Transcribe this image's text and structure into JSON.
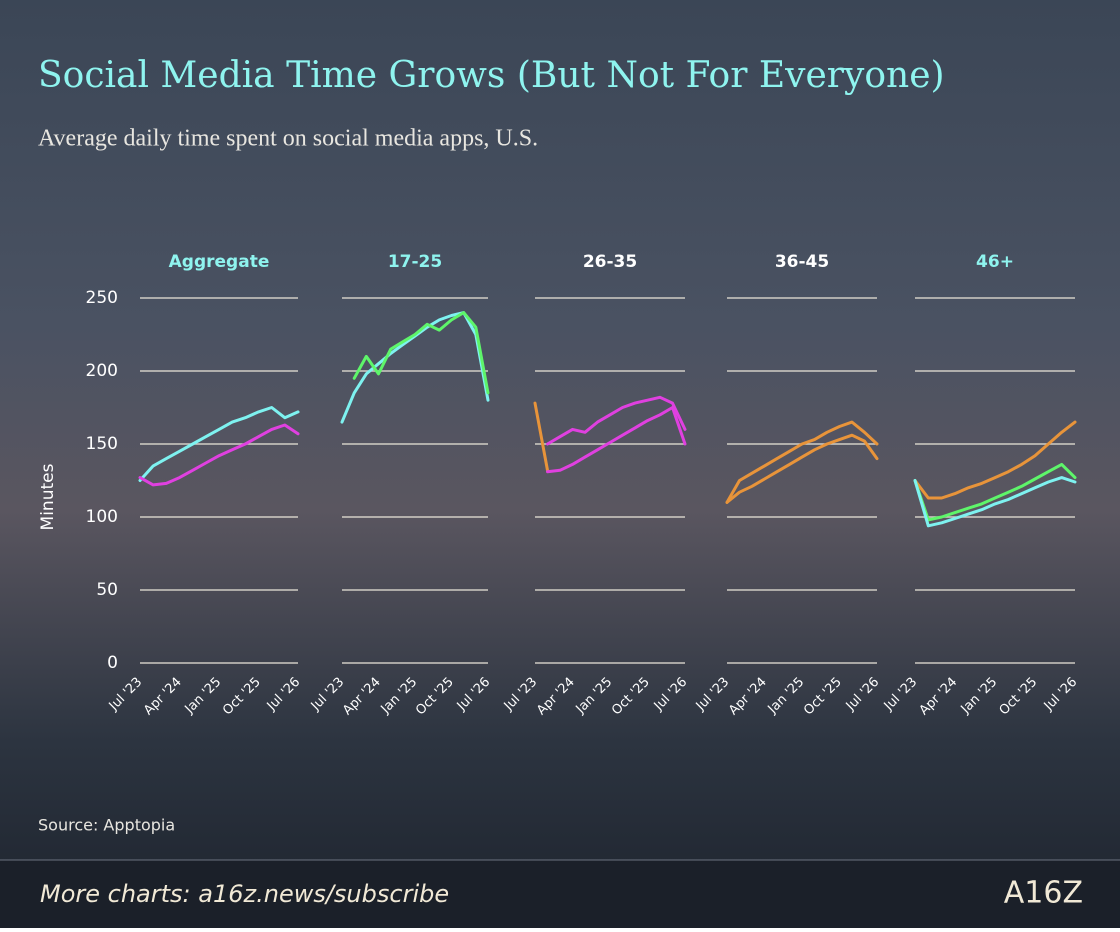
{
  "title": "Social Media Time Grows (But Not For Everyone)",
  "subtitle": "Average daily time spent on social media apps, U.S.",
  "source": "Source: Apptopia",
  "footer": "More charts: a16z.news/subscribe",
  "logo": "A16Z",
  "chart_data": [
    {
      "type": "line",
      "title": "Aggregate",
      "title_color": "#8ff4ef",
      "ylabel": "Minutes",
      "categories": [
        "Jul '23",
        null,
        null,
        "Apr '24",
        null,
        null,
        "Jan '25",
        null,
        null,
        "Oct '25",
        null,
        null,
        "Jul '26"
      ],
      "ylim": [
        0,
        250
      ],
      "yticks": [
        0,
        50,
        100,
        150,
        200,
        250
      ],
      "grid": true,
      "series": [
        {
          "color": "#7ef2f0",
          "values": [
            125,
            135,
            140,
            145,
            150,
            155,
            160,
            165,
            168,
            172,
            175,
            168,
            172
          ]
        },
        {
          "color": "#e040e0",
          "values": [
            127,
            122,
            123,
            127,
            132,
            137,
            142,
            146,
            150,
            155,
            160,
            163,
            157
          ]
        }
      ]
    },
    {
      "type": "line",
      "title": "17-25",
      "title_color": "#8ff4ef",
      "categories": [
        "Jul '23",
        null,
        null,
        "Apr '24",
        null,
        null,
        "Jan '25",
        null,
        null,
        "Oct '25",
        null,
        null,
        "Jul '26"
      ],
      "ylim": [
        0,
        250
      ],
      "yticks": [
        0,
        50,
        100,
        150,
        200,
        250
      ],
      "grid": true,
      "series": [
        {
          "color": "#7ef2f0",
          "values": [
            165,
            185,
            198,
            205,
            212,
            218,
            224,
            230,
            235,
            238,
            240,
            225,
            180
          ]
        },
        {
          "color": "#5ef56a",
          "values": [
            null,
            195,
            210,
            198,
            215,
            220,
            225,
            232,
            228,
            235,
            240,
            230,
            185
          ]
        }
      ]
    },
    {
      "type": "line",
      "title": "26-35",
      "title_color": "#ffffff",
      "categories": [
        "Jul '23",
        null,
        null,
        "Apr '24",
        null,
        null,
        "Jan '25",
        null,
        null,
        "Oct '25",
        null,
        null,
        "Jul '26"
      ],
      "ylim": [
        0,
        250
      ],
      "yticks": [
        0,
        50,
        100,
        150,
        200,
        250
      ],
      "grid": true,
      "series": [
        {
          "color": "#e8943a",
          "values": [
            178,
            132,
            null,
            null,
            null,
            null,
            null,
            null,
            null,
            null,
            null,
            null,
            null
          ]
        },
        {
          "color": "#e040e0",
          "values": [
            null,
            131,
            132,
            136,
            141,
            146,
            151,
            156,
            161,
            166,
            170,
            175,
            150
          ]
        },
        {
          "color": "#e040e0",
          "values": [
            null,
            150,
            155,
            160,
            158,
            165,
            170,
            175,
            178,
            180,
            182,
            178,
            160
          ]
        }
      ]
    },
    {
      "type": "line",
      "title": "36-45",
      "title_color": "#ffffff",
      "categories": [
        "Jul '23",
        null,
        null,
        "Apr '24",
        null,
        null,
        "Jan '25",
        null,
        null,
        "Oct '25",
        null,
        null,
        "Jul '26"
      ],
      "ylim": [
        0,
        250
      ],
      "yticks": [
        0,
        50,
        100,
        150,
        200,
        250
      ],
      "grid": true,
      "series": [
        {
          "color": "#e8943a",
          "values": [
            110,
            125,
            130,
            135,
            140,
            145,
            150,
            153,
            158,
            162,
            165,
            158,
            150
          ]
        },
        {
          "color": "#e8943a",
          "values": [
            110,
            117,
            121,
            126,
            131,
            136,
            141,
            146,
            150,
            153,
            156,
            152,
            140
          ]
        }
      ]
    },
    {
      "type": "line",
      "title": "46+",
      "title_color": "#8ff4ef",
      "categories": [
        "Jul '23",
        null,
        null,
        "Apr '24",
        null,
        null,
        "Jan '25",
        null,
        null,
        "Oct '25",
        null,
        null,
        "Jul '26"
      ],
      "ylim": [
        0,
        250
      ],
      "yticks": [
        0,
        50,
        100,
        150,
        200,
        250
      ],
      "grid": true,
      "series": [
        {
          "color": "#e8943a",
          "values": [
            125,
            113,
            113,
            116,
            120,
            123,
            127,
            131,
            136,
            142,
            150,
            158,
            165
          ]
        },
        {
          "color": "#5ef56a",
          "values": [
            125,
            98,
            100,
            103,
            106,
            109,
            113,
            117,
            121,
            126,
            131,
            136,
            127
          ]
        },
        {
          "color": "#7ef2f0",
          "values": [
            125,
            94,
            96,
            99,
            102,
            105,
            109,
            112,
            116,
            120,
            124,
            127,
            124
          ]
        }
      ]
    }
  ]
}
